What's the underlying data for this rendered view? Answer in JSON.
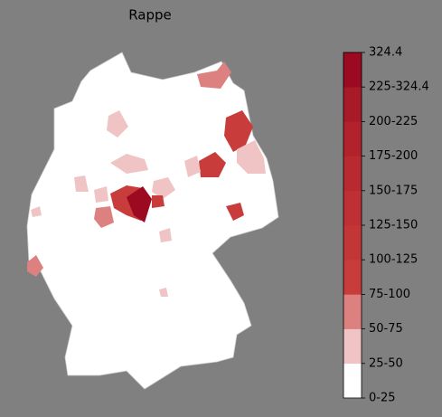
{
  "title": "Rappe",
  "colorbar": {
    "labels": [
      "0-25",
      "25-50",
      "50-75",
      "75-100",
      "100-125",
      "125-150",
      "150-175",
      "175-200",
      "200-225",
      "225-324.4",
      "324.4"
    ],
    "colors": [
      "#ffffff",
      "#f0c4c4",
      "#dc8080",
      "#c83c3c",
      "#c33638",
      "#be3034",
      "#b82a30",
      "#b2222c",
      "#a81a28",
      "#9b0a20"
    ]
  }
}
